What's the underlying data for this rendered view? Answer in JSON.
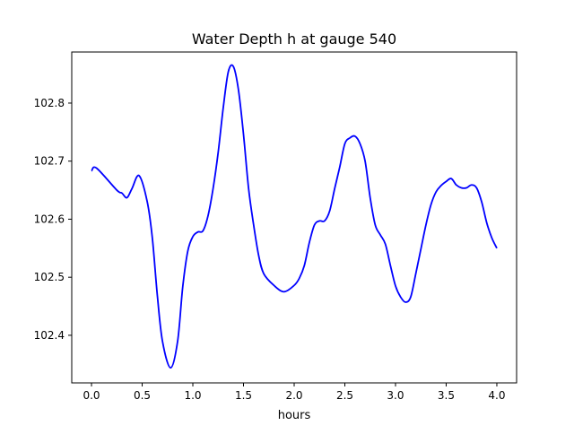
{
  "chart_data": {
    "type": "line",
    "title": "Water Depth h at gauge 540",
    "xlabel": "hours",
    "ylabel": "",
    "xlim": [
      -0.195,
      4.195
    ],
    "ylim": [
      102.318,
      102.888
    ],
    "xticks": [
      0.0,
      0.5,
      1.0,
      1.5,
      2.0,
      2.5,
      3.0,
      3.5,
      4.0
    ],
    "xtick_labels": [
      "0.0",
      "0.5",
      "1.0",
      "1.5",
      "2.0",
      "2.5",
      "3.0",
      "3.5",
      "4.0"
    ],
    "yticks": [
      102.4,
      102.5,
      102.6,
      102.7,
      102.8
    ],
    "ytick_labels": [
      "102.4",
      "102.5",
      "102.6",
      "102.7",
      "102.8"
    ],
    "grid": false,
    "series": [
      {
        "name": "h",
        "color": "#0000ff",
        "x": [
          0,
          0.05,
          0.25,
          0.3,
          0.35,
          0.4,
          0.47,
          0.55,
          0.6,
          0.65,
          0.7,
          0.78,
          0.85,
          0.9,
          0.95,
          1.0,
          1.05,
          1.1,
          1.15,
          1.2,
          1.25,
          1.3,
          1.35,
          1.4,
          1.45,
          1.5,
          1.55,
          1.6,
          1.65,
          1.7,
          1.8,
          1.9,
          2.0,
          2.05,
          2.1,
          2.15,
          2.2,
          2.25,
          2.3,
          2.35,
          2.4,
          2.45,
          2.5,
          2.55,
          2.6,
          2.65,
          2.7,
          2.75,
          2.8,
          2.85,
          2.9,
          2.95,
          3.0,
          3.05,
          3.1,
          3.15,
          3.2,
          3.25,
          3.3,
          3.35,
          3.4,
          3.45,
          3.5,
          3.55,
          3.6,
          3.65,
          3.7,
          3.75,
          3.8,
          3.85,
          3.9,
          3.95,
          4.0
        ],
        "y": [
          102.683,
          102.688,
          102.65,
          102.645,
          102.637,
          102.653,
          102.675,
          102.63,
          102.568,
          102.468,
          102.39,
          102.344,
          102.39,
          102.483,
          102.545,
          102.57,
          102.578,
          102.58,
          102.606,
          102.653,
          102.715,
          102.792,
          102.854,
          102.863,
          102.823,
          102.746,
          102.653,
          102.59,
          102.537,
          102.506,
          102.486,
          102.475,
          102.486,
          102.498,
          102.52,
          102.56,
          102.59,
          102.597,
          102.597,
          102.614,
          102.653,
          102.69,
          102.73,
          102.74,
          102.743,
          102.73,
          102.7,
          102.637,
          102.59,
          102.573,
          102.557,
          102.52,
          102.485,
          102.466,
          102.457,
          102.466,
          102.506,
          102.548,
          102.59,
          102.625,
          102.647,
          102.658,
          102.665,
          102.67,
          102.659,
          102.654,
          102.654,
          102.659,
          102.654,
          102.63,
          102.594,
          102.568,
          102.55
        ]
      }
    ]
  }
}
